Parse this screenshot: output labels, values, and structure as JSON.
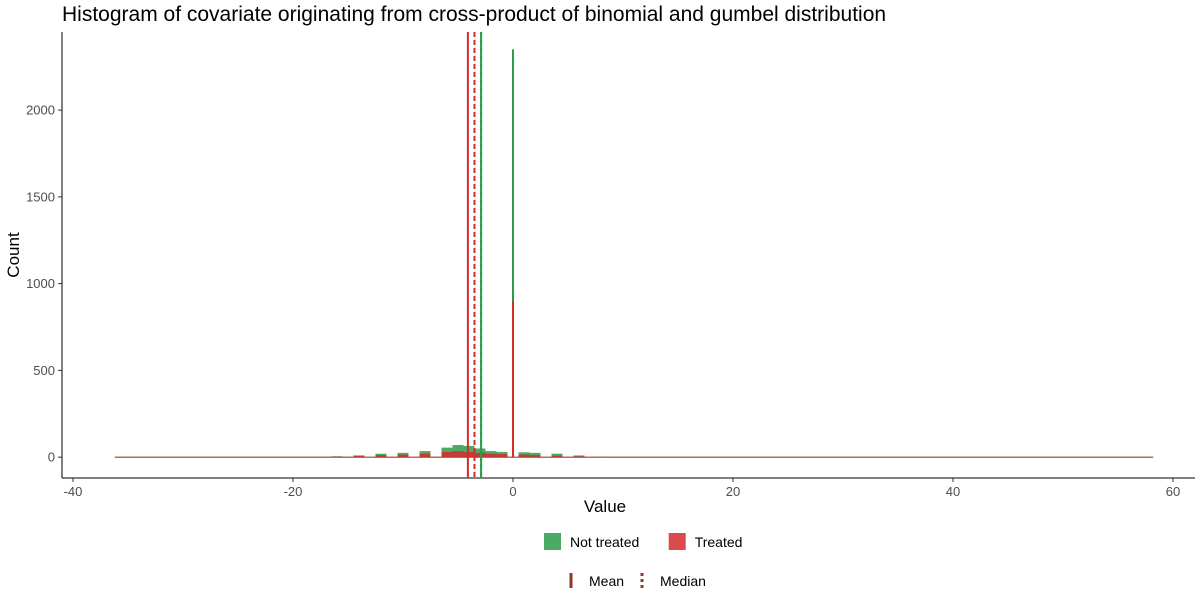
{
  "chart_data": {
    "type": "bar",
    "title": "Histogram of covariate originating from cross-product of binomial and gumbel distribution",
    "xlabel": "Value",
    "ylabel": "Count",
    "xlim": [
      -41,
      62
    ],
    "ylim": [
      -120,
      2450
    ],
    "x_ticks": [
      -40,
      -20,
      0,
      20,
      40,
      60
    ],
    "y_ticks": [
      0,
      500,
      1000,
      1500,
      2000
    ],
    "grid": false,
    "legend_position": "bottom",
    "series": [
      {
        "name": "Not treated",
        "color": "#2e9b4a",
        "spike": {
          "x": 0,
          "count": 2350
        },
        "bulk": [
          {
            "x": -16,
            "count": 5
          },
          {
            "x": -14,
            "count": 10
          },
          {
            "x": -12,
            "count": 20
          },
          {
            "x": -10,
            "count": 25
          },
          {
            "x": -8,
            "count": 35
          },
          {
            "x": -6,
            "count": 55
          },
          {
            "x": -5,
            "count": 70
          },
          {
            "x": -4,
            "count": 65
          },
          {
            "x": -3,
            "count": 50
          },
          {
            "x": -2,
            "count": 35
          },
          {
            "x": -1,
            "count": 30
          },
          {
            "x": 1,
            "count": 28
          },
          {
            "x": 2,
            "count": 25
          },
          {
            "x": 4,
            "count": 20
          },
          {
            "x": 6,
            "count": 10
          },
          {
            "x": 8,
            "count": 3
          }
        ],
        "mean": -2.9,
        "median": -2.9
      },
      {
        "name": "Treated",
        "color": "#d62b2b",
        "spike": {
          "x": 0,
          "count": 900
        },
        "bulk": [
          {
            "x": -16,
            "count": 4
          },
          {
            "x": -14,
            "count": 8
          },
          {
            "x": -12,
            "count": 12
          },
          {
            "x": -10,
            "count": 15
          },
          {
            "x": -8,
            "count": 20
          },
          {
            "x": -6,
            "count": 30
          },
          {
            "x": -5,
            "count": 35
          },
          {
            "x": -4,
            "count": 30
          },
          {
            "x": -3,
            "count": 25
          },
          {
            "x": -2,
            "count": 20
          },
          {
            "x": -1,
            "count": 18
          },
          {
            "x": 1,
            "count": 15
          },
          {
            "x": 2,
            "count": 12
          },
          {
            "x": 4,
            "count": 8
          },
          {
            "x": 6,
            "count": 5
          },
          {
            "x": 8,
            "count": 2
          }
        ],
        "mean": -4.1,
        "median": -3.5
      }
    ],
    "range_line": {
      "from": -36.2,
      "to": 58.2,
      "color": "#8b4513"
    },
    "legend_fill": [
      {
        "label": "Not treated",
        "color": "#2e9b4a"
      },
      {
        "label": "Treated",
        "color": "#d62b2b"
      }
    ],
    "legend_lines": [
      {
        "label": "Mean",
        "style": "solid",
        "color": "#8b3a2b"
      },
      {
        "label": "Median",
        "style": "dashed",
        "color": "#8b3a2b"
      }
    ]
  }
}
